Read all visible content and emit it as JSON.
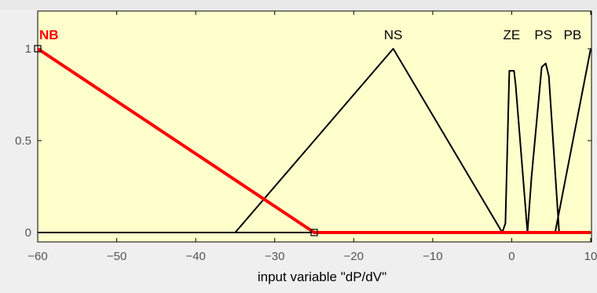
{
  "chart_data": {
    "type": "line",
    "title": "",
    "xlabel": "input variable \"dP/dV\"",
    "ylabel": "",
    "xlim": [
      -60,
      10
    ],
    "ylim": [
      0,
      1.2
    ],
    "xticks": [
      -60,
      -50,
      -40,
      -30,
      -20,
      -10,
      0,
      10
    ],
    "yticks": [
      0,
      0.5,
      1
    ],
    "xtick_labels": [
      "−60",
      "−50",
      "−40",
      "−30",
      "−20",
      "−10",
      "0",
      "10"
    ],
    "ytick_labels": [
      "0",
      "0.5",
      "1"
    ],
    "grid": false,
    "legend": "none",
    "series": [
      {
        "name": "NB",
        "color": "#ff0000",
        "selected": true,
        "x": [
          -60,
          -25,
          10
        ],
        "y": [
          1,
          0,
          0
        ]
      },
      {
        "name": "NS",
        "color": "#000000",
        "selected": false,
        "x": [
          -60,
          -35,
          -15,
          -1.2,
          10
        ],
        "y": [
          0,
          0,
          1,
          0,
          0
        ]
      },
      {
        "name": "ZE",
        "color": "#000000",
        "selected": false,
        "x": [
          -60,
          -1.2,
          -0.8,
          -0.3,
          0.3,
          0.5,
          2,
          10
        ],
        "y": [
          0,
          0,
          0.05,
          0.88,
          0.88,
          0.8,
          0,
          0
        ]
      },
      {
        "name": "PS",
        "color": "#000000",
        "selected": false,
        "x": [
          -60,
          2,
          2.5,
          3.8,
          4.3,
          4.7,
          6,
          10
        ],
        "y": [
          0,
          0,
          0.3,
          0.9,
          0.92,
          0.85,
          0,
          0
        ]
      },
      {
        "name": "PB",
        "color": "#000000",
        "selected": false,
        "x": [
          -60,
          5.5,
          10
        ],
        "y": [
          0,
          0,
          1
        ]
      }
    ],
    "mf_labels": [
      {
        "text": "NB",
        "x": -60,
        "color": "#ff0000"
      },
      {
        "text": "NS",
        "x": -15,
        "color": "#000000"
      },
      {
        "text": "ZE",
        "x": 0,
        "color": "#000000"
      },
      {
        "text": "PS",
        "x": 4,
        "color": "#000000"
      },
      {
        "text": "PB",
        "x": 7.7,
        "color": "#000000"
      }
    ],
    "background_color": "#ffffcc"
  }
}
